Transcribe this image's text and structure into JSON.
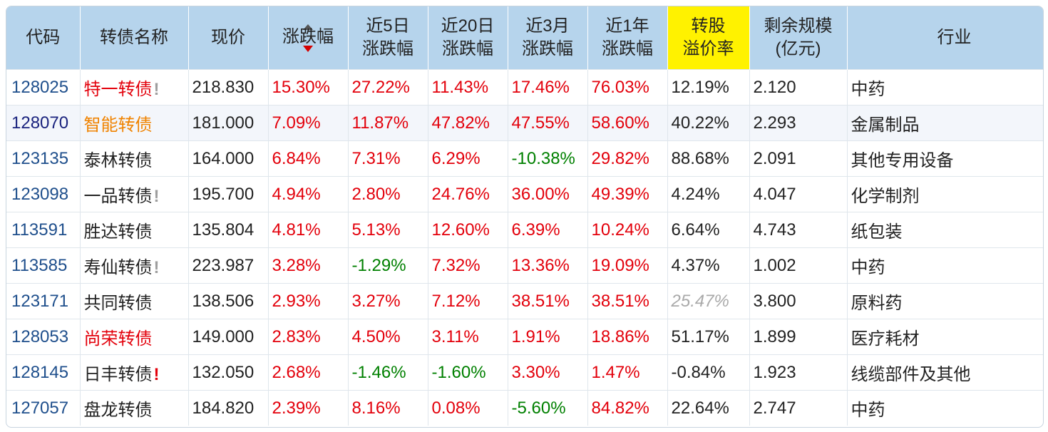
{
  "headers": [
    {
      "id": "code",
      "lines": [
        "代码"
      ]
    },
    {
      "id": "name",
      "lines": [
        "转债名称"
      ]
    },
    {
      "id": "price",
      "lines": [
        "现价"
      ]
    },
    {
      "id": "change",
      "lines": [
        "涨跌幅"
      ],
      "sorted": "desc"
    },
    {
      "id": "chg5d",
      "lines": [
        "近5日",
        "涨跌幅"
      ]
    },
    {
      "id": "chg20d",
      "lines": [
        "近20日",
        "涨跌幅"
      ]
    },
    {
      "id": "chg3m",
      "lines": [
        "近3月",
        "涨跌幅"
      ]
    },
    {
      "id": "chg1y",
      "lines": [
        "近1年",
        "涨跌幅"
      ]
    },
    {
      "id": "premium",
      "lines": [
        "转股",
        "溢价率"
      ],
      "highlight": "#fff200"
    },
    {
      "id": "remaining",
      "lines": [
        "剩余规模",
        "(亿元)"
      ]
    },
    {
      "id": "industry",
      "lines": [
        "行业"
      ]
    }
  ],
  "colors": {
    "up": "#e3000b",
    "down": "#008000",
    "header_bg": "#b6d4ec",
    "highlight": "#fff200",
    "code": "#1f4f8c",
    "orange_name": "#f08300"
  },
  "rows": [
    {
      "code": "128025",
      "name": "特一转债",
      "name_color": "red",
      "flag": "!",
      "flag_color": "gray",
      "price": "218.830",
      "change": "15.30%",
      "chg5d": "27.22%",
      "chg20d": "11.43%",
      "chg3m": "17.46%",
      "chg1y": "76.03%",
      "premium": "12.19%",
      "remaining": "2.120",
      "industry": "中药"
    },
    {
      "code": "128070",
      "name": "智能转债",
      "name_color": "orange",
      "flag": "",
      "flag_color": "",
      "price": "181.000",
      "change": "7.09%",
      "chg5d": "11.87%",
      "chg20d": "47.82%",
      "chg3m": "47.55%",
      "chg1y": "58.60%",
      "premium": "40.22%",
      "remaining": "2.293",
      "industry": "金属制品"
    },
    {
      "code": "123135",
      "name": "泰林转债",
      "name_color": "",
      "flag": "",
      "flag_color": "",
      "price": "164.000",
      "change": "6.84%",
      "chg5d": "7.31%",
      "chg20d": "6.29%",
      "chg3m": "-10.38%",
      "chg1y": "29.82%",
      "premium": "88.68%",
      "remaining": "2.091",
      "industry": "其他专用设备"
    },
    {
      "code": "123098",
      "name": "一品转债",
      "name_color": "",
      "flag": "!",
      "flag_color": "gray",
      "price": "195.700",
      "change": "4.94%",
      "chg5d": "2.80%",
      "chg20d": "24.76%",
      "chg3m": "36.00%",
      "chg1y": "49.39%",
      "premium": "4.24%",
      "remaining": "4.047",
      "industry": "化学制剂"
    },
    {
      "code": "113591",
      "name": "胜达转债",
      "name_color": "",
      "flag": "",
      "flag_color": "",
      "price": "135.804",
      "change": "4.81%",
      "chg5d": "5.13%",
      "chg20d": "12.60%",
      "chg3m": "6.39%",
      "chg1y": "10.24%",
      "premium": "6.64%",
      "remaining": "4.743",
      "industry": "纸包装"
    },
    {
      "code": "113585",
      "name": "寿仙转债",
      "name_color": "",
      "flag": "!",
      "flag_color": "gray",
      "price": "223.987",
      "change": "3.28%",
      "chg5d": "-1.29%",
      "chg20d": "7.32%",
      "chg3m": "13.36%",
      "chg1y": "19.09%",
      "premium": "4.37%",
      "remaining": "1.002",
      "industry": "中药"
    },
    {
      "code": "123171",
      "name": "共同转债",
      "name_color": "",
      "flag": "",
      "flag_color": "",
      "price": "138.506",
      "change": "2.93%",
      "chg5d": "3.27%",
      "chg20d": "7.12%",
      "chg3m": "38.51%",
      "chg1y": "38.51%",
      "premium": "25.47%",
      "premium_style": "gray-italic",
      "remaining": "3.800",
      "industry": "原料药"
    },
    {
      "code": "128053",
      "name": "尚荣转债",
      "name_color": "red",
      "flag": "",
      "flag_color": "",
      "price": "149.000",
      "change": "2.83%",
      "chg5d": "4.50%",
      "chg20d": "3.11%",
      "chg3m": "1.91%",
      "chg1y": "18.86%",
      "premium": "51.17%",
      "remaining": "1.899",
      "industry": "医疗耗材"
    },
    {
      "code": "128145",
      "name": "日丰转债",
      "name_color": "",
      "flag": "!",
      "flag_color": "red",
      "price": "132.050",
      "change": "2.68%",
      "chg5d": "-1.46%",
      "chg20d": "-1.60%",
      "chg3m": "3.30%",
      "chg1y": "1.47%",
      "premium": "-0.84%",
      "remaining": "1.923",
      "industry": "线缆部件及其他"
    },
    {
      "code": "127057",
      "name": "盘龙转债",
      "name_color": "",
      "flag": "",
      "flag_color": "",
      "price": "184.820",
      "change": "2.39%",
      "chg5d": "8.16%",
      "chg20d": "0.08%",
      "chg3m": "-5.60%",
      "chg1y": "84.82%",
      "premium": "22.64%",
      "remaining": "2.747",
      "industry": "中药"
    }
  ]
}
